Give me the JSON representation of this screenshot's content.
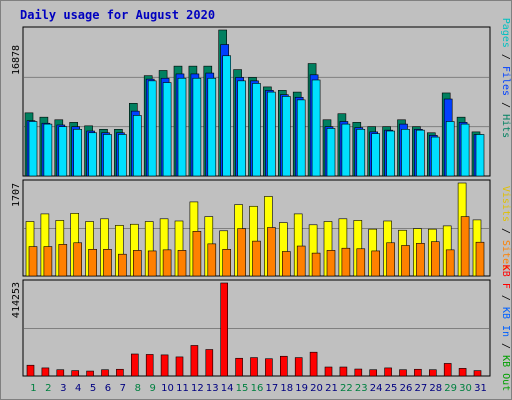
{
  "chart_data": [
    {
      "type": "bar",
      "title": "Daily usage for August 2020",
      "panel": "top",
      "ymax_label": "16878",
      "ylim": [
        0,
        16878
      ],
      "categories": [
        "1",
        "2",
        "3",
        "4",
        "5",
        "6",
        "7",
        "8",
        "9",
        "10",
        "11",
        "12",
        "13",
        "14",
        "15",
        "16",
        "17",
        "18",
        "19",
        "20",
        "21",
        "22",
        "23",
        "24",
        "25",
        "26",
        "27",
        "28",
        "29",
        "30",
        "31"
      ],
      "category_colors": {
        "weekend": "#008040",
        "weekday": "#000080"
      },
      "weekend_days": [
        "1",
        "2",
        "8",
        "9",
        "15",
        "16",
        "22",
        "23",
        "29",
        "30"
      ],
      "series": [
        {
          "name": "Hits",
          "color": "#008060",
          "values": [
            7300,
            6800,
            6500,
            6200,
            5800,
            5400,
            5400,
            8400,
            11600,
            12200,
            12700,
            12700,
            12700,
            16878,
            12300,
            11400,
            10300,
            9900,
            9700,
            13000,
            6500,
            7200,
            6200,
            5700,
            5700,
            6500,
            5700,
            5000,
            9600,
            6800,
            5100
          ]
        },
        {
          "name": "Files",
          "color": "#0040ff",
          "values": [
            6400,
            6100,
            5900,
            5700,
            5200,
            5000,
            5000,
            7500,
            11200,
            11300,
            11800,
            11800,
            11900,
            15200,
            11400,
            11000,
            9900,
            9400,
            9100,
            11700,
            5700,
            6300,
            5600,
            5100,
            5300,
            6000,
            5400,
            4700,
            8900,
            6200,
            4800
          ]
        },
        {
          "name": "Pages",
          "color": "#00e0ff",
          "values": [
            6300,
            6000,
            5700,
            5400,
            5000,
            4800,
            4800,
            7000,
            11000,
            10800,
            11300,
            11300,
            11300,
            13900,
            11000,
            10700,
            9700,
            9200,
            8800,
            11100,
            5500,
            6000,
            5400,
            4900,
            5200,
            5400,
            5300,
            4500,
            6300,
            6000,
            4800
          ]
        },
        {
          "name": "Visits",
          "color": "#ffff00",
          "panel": "middle",
          "values": [
            1000,
            1140,
            1020,
            1150,
            1000,
            1050,
            930,
            950,
            1000,
            1050,
            1010,
            1360,
            1090,
            830,
            1310,
            1280,
            1460,
            980,
            1140,
            940,
            1000,
            1050,
            1020,
            860,
            1010,
            840,
            870,
            860,
            920,
            1707,
            1030
          ]
        },
        {
          "name": "Sites",
          "color": "#ff8000",
          "panel": "middle",
          "values": [
            540,
            540,
            580,
            610,
            490,
            490,
            400,
            470,
            460,
            480,
            470,
            820,
            590,
            490,
            870,
            640,
            890,
            450,
            550,
            420,
            470,
            510,
            500,
            460,
            610,
            560,
            600,
            630,
            480,
            1090,
            620
          ]
        },
        {
          "name": "KB F",
          "color": "#ff0000",
          "panel": "bottom",
          "values": [
            48000,
            36000,
            28000,
            24000,
            22000,
            28000,
            30000,
            98000,
            96000,
            94000,
            85000,
            136000,
            118000,
            414253,
            79000,
            82000,
            77000,
            88000,
            82000,
            106000,
            40000,
            40000,
            31000,
            28000,
            36000,
            28000,
            30000,
            28000,
            56000,
            34000,
            24000
          ]
        }
      ]
    }
  ],
  "panels": {
    "top_max": "16878",
    "middle_max": "1707",
    "bottom_max": "414253"
  },
  "legend": {
    "top": [
      "Pages",
      " / ",
      "Files",
      " / ",
      "Hits"
    ],
    "top_colors": [
      "#00c0c0",
      "#000000",
      "#0040ff",
      "#000000",
      "#008060"
    ],
    "middle": [
      "Visits",
      " / ",
      "Sites"
    ],
    "middle_colors": [
      "#e0c000",
      "#000000",
      "#ff8000"
    ],
    "bottom": [
      "KB F",
      " / ",
      "KB In",
      " / ",
      "KB Out"
    ],
    "bottom_colors": [
      "#ff0000",
      "#000000",
      "#0060ff",
      "#000000",
      "#00a000"
    ]
  }
}
